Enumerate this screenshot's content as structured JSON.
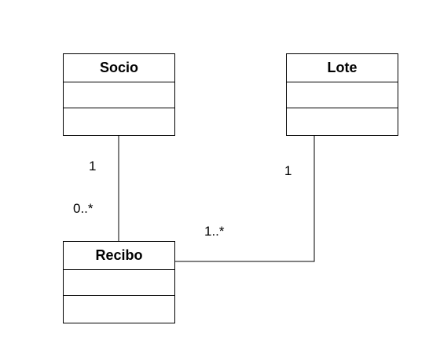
{
  "diagram": {
    "classes": {
      "socio": {
        "name": "Socio"
      },
      "lote": {
        "name": "Lote"
      },
      "recibo": {
        "name": "Recibo"
      }
    },
    "associations": {
      "socio_recibo": {
        "socio_end": "1",
        "recibo_end": "0..*"
      },
      "lote_recibo": {
        "lote_end": "1",
        "recibo_end": "1..*"
      }
    },
    "colors": {
      "stroke": "#000000",
      "fill": "#ffffff"
    }
  }
}
